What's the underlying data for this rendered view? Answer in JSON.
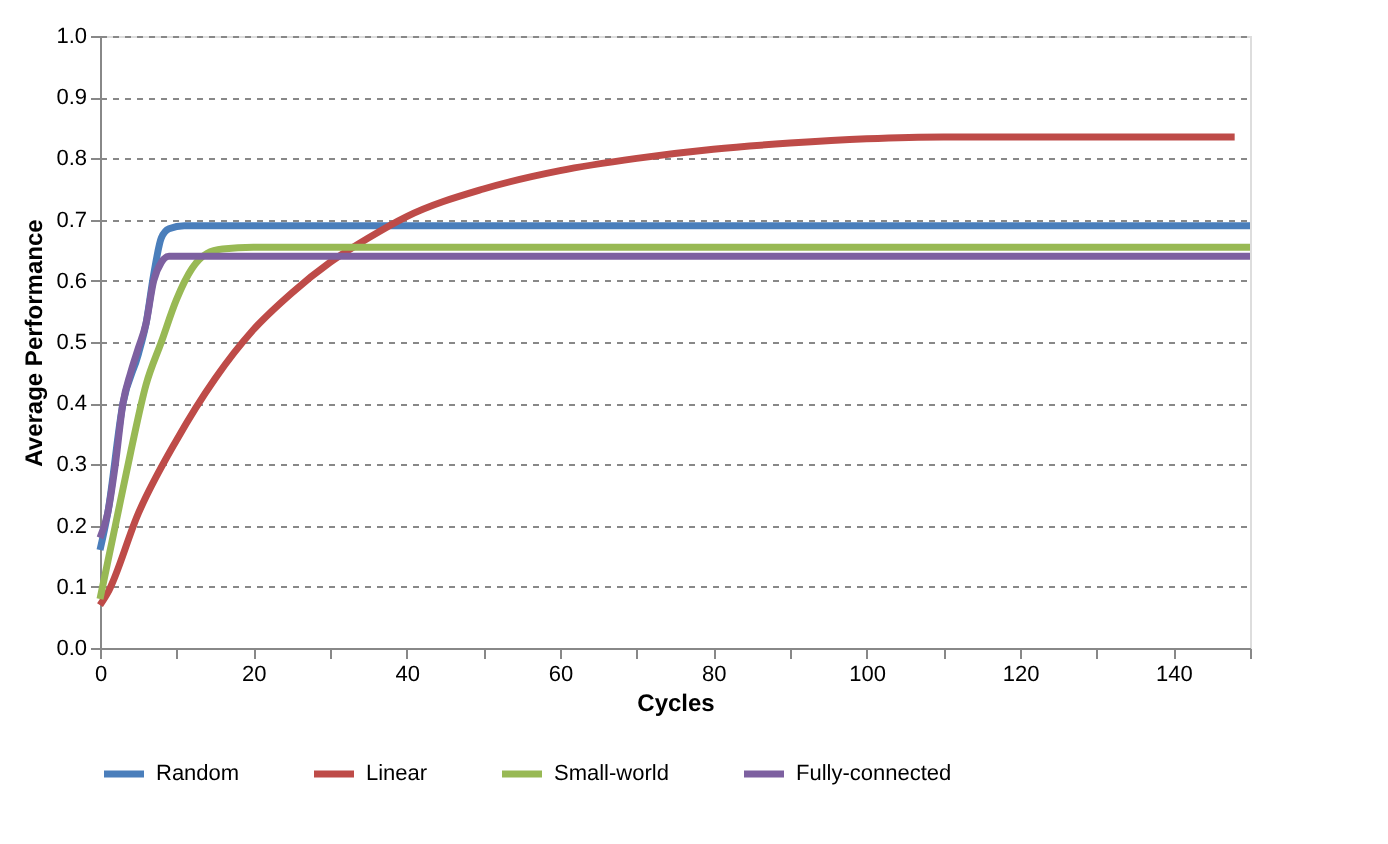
{
  "chart_data": {
    "type": "line",
    "xlabel": "Cycles",
    "ylabel": "Average Performance",
    "xlim": [
      0,
      150
    ],
    "ylim": [
      0,
      1.0
    ],
    "xticks": [
      0,
      {
        "value": 10,
        "label": null
      },
      20,
      {
        "value": 30,
        "label": null
      },
      40,
      {
        "value": 50,
        "label": null
      },
      60,
      {
        "value": 70,
        "label": null
      },
      80,
      {
        "value": 90,
        "label": null
      },
      100,
      {
        "value": 110,
        "label": null
      },
      120,
      {
        "value": 130,
        "label": null
      },
      140,
      {
        "value": 150,
        "label": null
      }
    ],
    "yticks": [
      {
        "value": 0,
        "label": "0.0"
      },
      0.1,
      0.2,
      0.3,
      0.4,
      0.5,
      0.6,
      0.7,
      0.8,
      0.9,
      {
        "value": 1.0,
        "label": "1.0"
      }
    ],
    "grid": "y",
    "legend": "bottom",
    "line_style": "solid",
    "marker": "none",
    "series": [
      {
        "name": "Random",
        "color": "#4a7ebb",
        "x": [
          0,
          1,
          3,
          5,
          6,
          7,
          8,
          9,
          11,
          20,
          150
        ],
        "values": [
          0.16,
          0.22,
          0.4,
          0.48,
          0.53,
          0.61,
          0.67,
          0.685,
          0.69,
          0.69,
          0.69
        ]
      },
      {
        "name": "Linear",
        "color": "#be4b48",
        "x": [
          0,
          1,
          5,
          10,
          15,
          20,
          25,
          30,
          35,
          40,
          50,
          60,
          70,
          80,
          90,
          100,
          110,
          120,
          148
        ],
        "values": [
          0.07,
          0.09,
          0.22,
          0.34,
          0.44,
          0.52,
          0.58,
          0.63,
          0.67,
          0.705,
          0.75,
          0.78,
          0.8,
          0.815,
          0.825,
          0.832,
          0.835,
          0.835,
          0.835
        ]
      },
      {
        "name": "Small-world",
        "color": "#98b954",
        "x": [
          0,
          2,
          4,
          6,
          8,
          10,
          12,
          14,
          16,
          20,
          150
        ],
        "values": [
          0.08,
          0.2,
          0.32,
          0.43,
          0.5,
          0.57,
          0.62,
          0.645,
          0.652,
          0.655,
          0.655
        ]
      },
      {
        "name": "Fully-connected",
        "color": "#7d60a0",
        "x": [
          0,
          1,
          2,
          3,
          4,
          5,
          6,
          7,
          8,
          9,
          11,
          150
        ],
        "values": [
          0.18,
          0.22,
          0.3,
          0.4,
          0.45,
          0.49,
          0.53,
          0.6,
          0.63,
          0.64,
          0.64,
          0.64
        ]
      }
    ]
  }
}
